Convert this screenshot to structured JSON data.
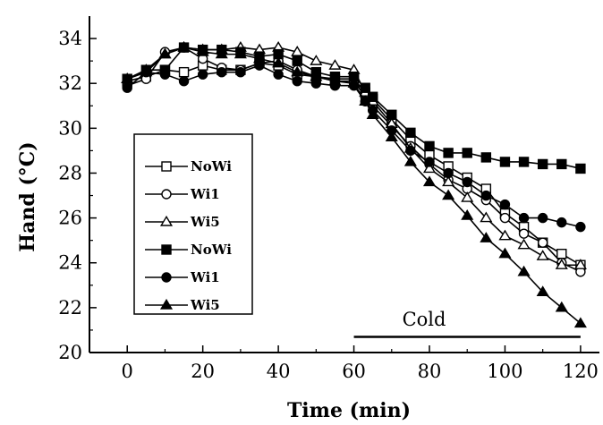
{
  "chart_data": {
    "type": "line",
    "xlabel": "Time (min)",
    "ylabel": "Hand (°C)",
    "xlim": [
      -10,
      125
    ],
    "ylim": [
      20,
      35
    ],
    "xticks": [
      0,
      20,
      40,
      60,
      80,
      100,
      120
    ],
    "yticks": [
      20,
      22,
      24,
      26,
      28,
      30,
      32,
      34
    ],
    "annotation": {
      "text": "Cold",
      "x_start": 60,
      "x_end": 120,
      "y": 20.7
    },
    "legend_position": "center-left",
    "series": [
      {
        "name": "NoWi",
        "marker": "square-open",
        "x": [
          0,
          5,
          10,
          15,
          20,
          25,
          30,
          35,
          40,
          45,
          50,
          55,
          60,
          63,
          65,
          70,
          75,
          80,
          85,
          90,
          95,
          100,
          105,
          110,
          115,
          120
        ],
        "y": [
          32.1,
          32.3,
          32.6,
          32.5,
          32.8,
          32.6,
          32.6,
          32.9,
          32.8,
          32.4,
          32.3,
          32.2,
          32.2,
          31.6,
          31.3,
          30.4,
          29.5,
          28.8,
          28.3,
          27.8,
          27.3,
          26.2,
          25.6,
          24.9,
          24.4,
          23.9
        ]
      },
      {
        "name": "Wi1",
        "marker": "circle-open",
        "x": [
          0,
          5,
          10,
          15,
          20,
          25,
          30,
          35,
          40,
          45,
          50,
          55,
          60,
          63,
          65,
          70,
          75,
          80,
          85,
          90,
          95,
          100,
          105,
          110,
          115,
          120
        ],
        "y": [
          31.9,
          32.2,
          33.4,
          33.6,
          33.1,
          32.7,
          32.6,
          32.9,
          33.0,
          32.6,
          32.3,
          32.1,
          32.1,
          31.4,
          31.0,
          30.1,
          29.2,
          28.4,
          27.7,
          27.3,
          26.8,
          26.0,
          25.3,
          24.9,
          24.0,
          23.6
        ]
      },
      {
        "name": "Wi5",
        "marker": "triangle-open",
        "x": [
          0,
          5,
          10,
          15,
          20,
          25,
          30,
          35,
          40,
          45,
          50,
          55,
          60,
          63,
          65,
          70,
          75,
          80,
          85,
          90,
          95,
          100,
          105,
          110,
          115,
          120
        ],
        "y": [
          32.2,
          32.5,
          33.3,
          33.6,
          33.5,
          33.5,
          33.6,
          33.5,
          33.6,
          33.4,
          33.0,
          32.8,
          32.6,
          31.6,
          31.2,
          30.2,
          29.1,
          28.2,
          27.6,
          26.9,
          26.0,
          25.2,
          24.8,
          24.3,
          23.9,
          23.9
        ]
      },
      {
        "name": "NoWi",
        "marker": "square-filled",
        "x": [
          0,
          5,
          10,
          15,
          20,
          25,
          30,
          35,
          40,
          45,
          50,
          55,
          60,
          63,
          65,
          70,
          75,
          80,
          85,
          90,
          95,
          100,
          105,
          110,
          115,
          120
        ],
        "y": [
          32.2,
          32.6,
          32.6,
          33.6,
          33.5,
          33.5,
          33.4,
          33.2,
          33.3,
          33.0,
          32.5,
          32.3,
          32.3,
          31.8,
          31.4,
          30.6,
          29.8,
          29.2,
          28.9,
          28.9,
          28.7,
          28.5,
          28.5,
          28.4,
          28.4,
          28.2
        ]
      },
      {
        "name": "Wi1",
        "marker": "circle-filled",
        "x": [
          0,
          5,
          10,
          15,
          20,
          25,
          30,
          35,
          40,
          45,
          50,
          55,
          60,
          63,
          65,
          70,
          75,
          80,
          85,
          90,
          95,
          100,
          105,
          110,
          115,
          120
        ],
        "y": [
          31.8,
          32.5,
          32.4,
          32.1,
          32.4,
          32.5,
          32.5,
          32.8,
          32.4,
          32.1,
          32.0,
          31.9,
          31.9,
          31.2,
          30.8,
          29.9,
          29.0,
          28.5,
          28.0,
          27.6,
          27.0,
          26.6,
          26.0,
          26.0,
          25.8,
          25.6
        ]
      },
      {
        "name": "Wi5",
        "marker": "triangle-filled",
        "x": [
          0,
          5,
          10,
          15,
          20,
          25,
          30,
          35,
          40,
          45,
          50,
          55,
          60,
          63,
          65,
          70,
          75,
          80,
          85,
          90,
          95,
          100,
          105,
          110,
          115,
          120
        ],
        "y": [
          32.2,
          32.6,
          33.3,
          33.6,
          33.4,
          33.3,
          33.3,
          33.1,
          32.9,
          32.5,
          32.3,
          32.1,
          32.0,
          31.2,
          30.6,
          29.6,
          28.5,
          27.6,
          27.0,
          26.1,
          25.1,
          24.4,
          23.6,
          22.7,
          22.0,
          21.3
        ]
      }
    ]
  }
}
